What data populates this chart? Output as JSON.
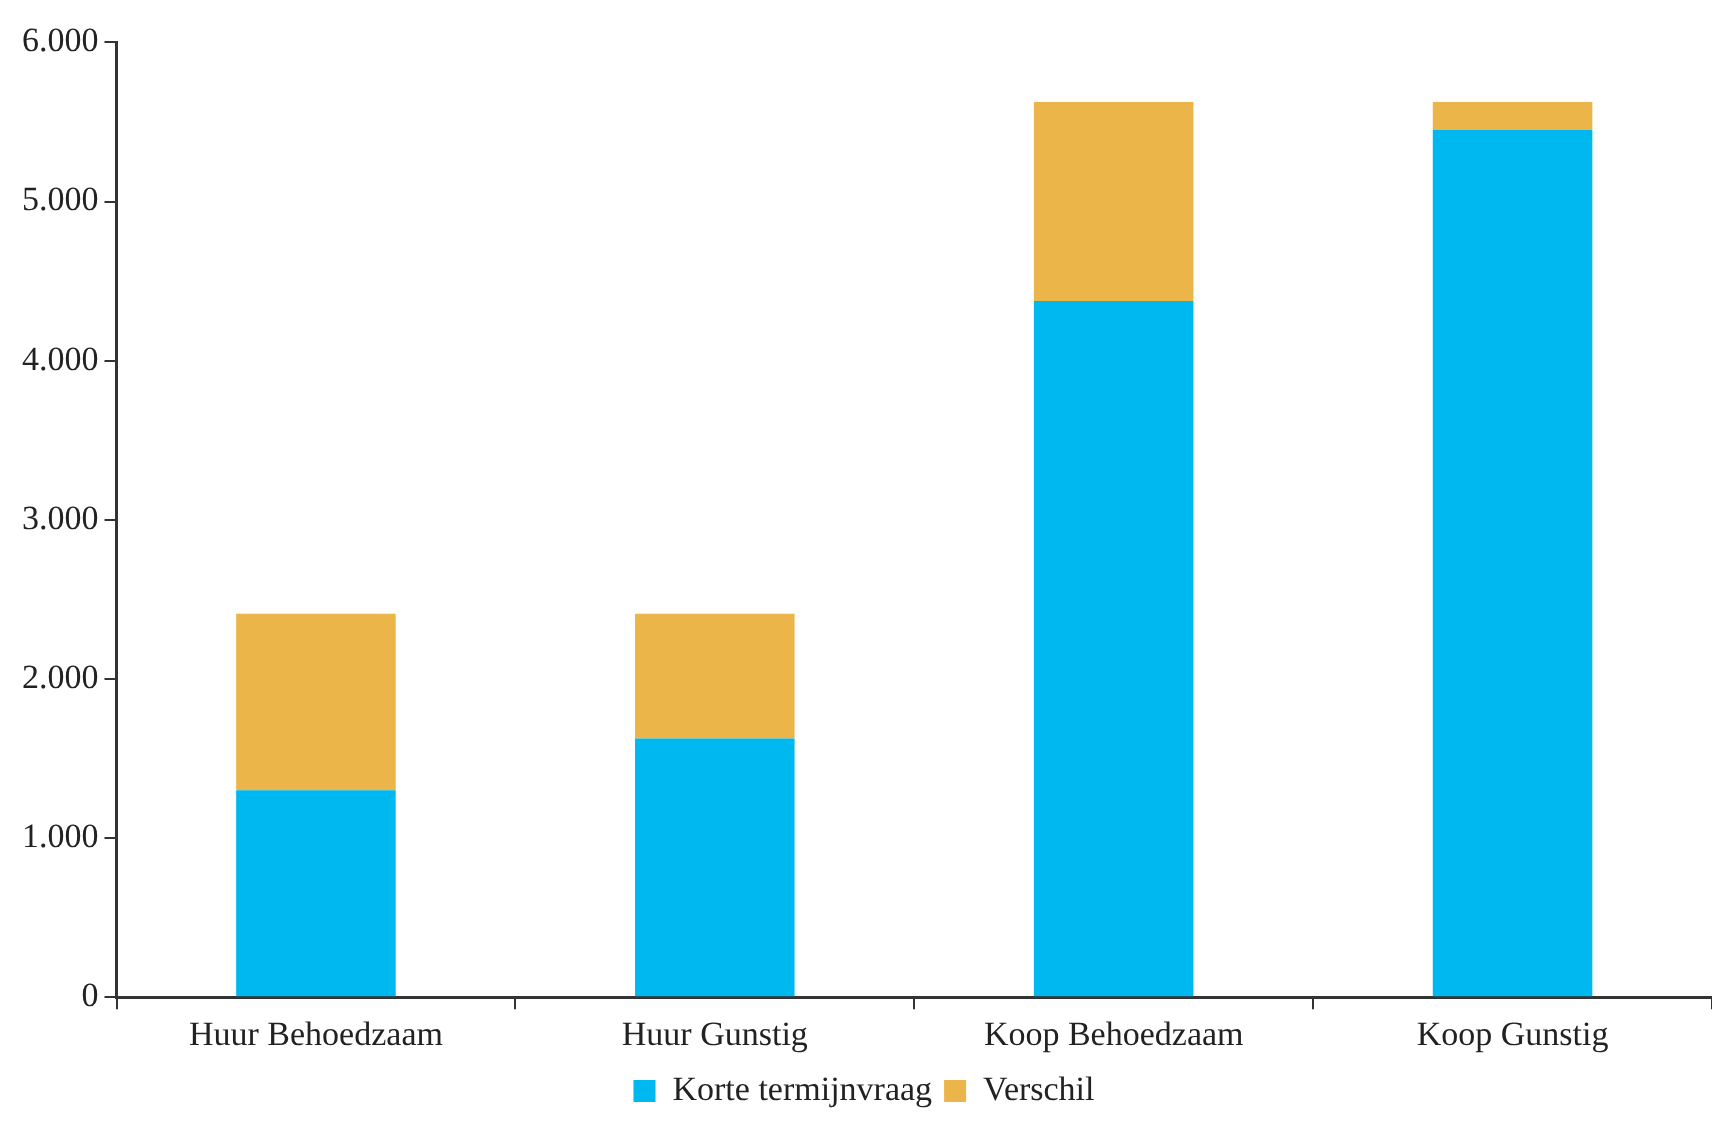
{
  "chart_data": {
    "type": "bar",
    "stacked": true,
    "categories": [
      "Huur Behoedzaam",
      "Huur Gunstig",
      "Koop Behoedzaam",
      "Koop Gunstig"
    ],
    "series": [
      {
        "name": "Korte termijnvraag",
        "color": "#00b8f0",
        "values": [
          1300,
          1625,
          4375,
          5450
        ]
      },
      {
        "name": "Verschil",
        "color": "#ecb54a",
        "values": [
          1110,
          785,
          1250,
          175
        ]
      }
    ],
    "ylim": [
      0,
      6000
    ],
    "yticks": [
      {
        "value": 0,
        "label": "0"
      },
      {
        "value": 1000,
        "label": "1.000"
      },
      {
        "value": 2000,
        "label": "2.000"
      },
      {
        "value": 3000,
        "label": "3.000"
      },
      {
        "value": 4000,
        "label": "4.000"
      },
      {
        "value": 5000,
        "label": "5.000"
      },
      {
        "value": 6000,
        "label": "6.000"
      }
    ],
    "grid": false,
    "legend": "bottom"
  }
}
